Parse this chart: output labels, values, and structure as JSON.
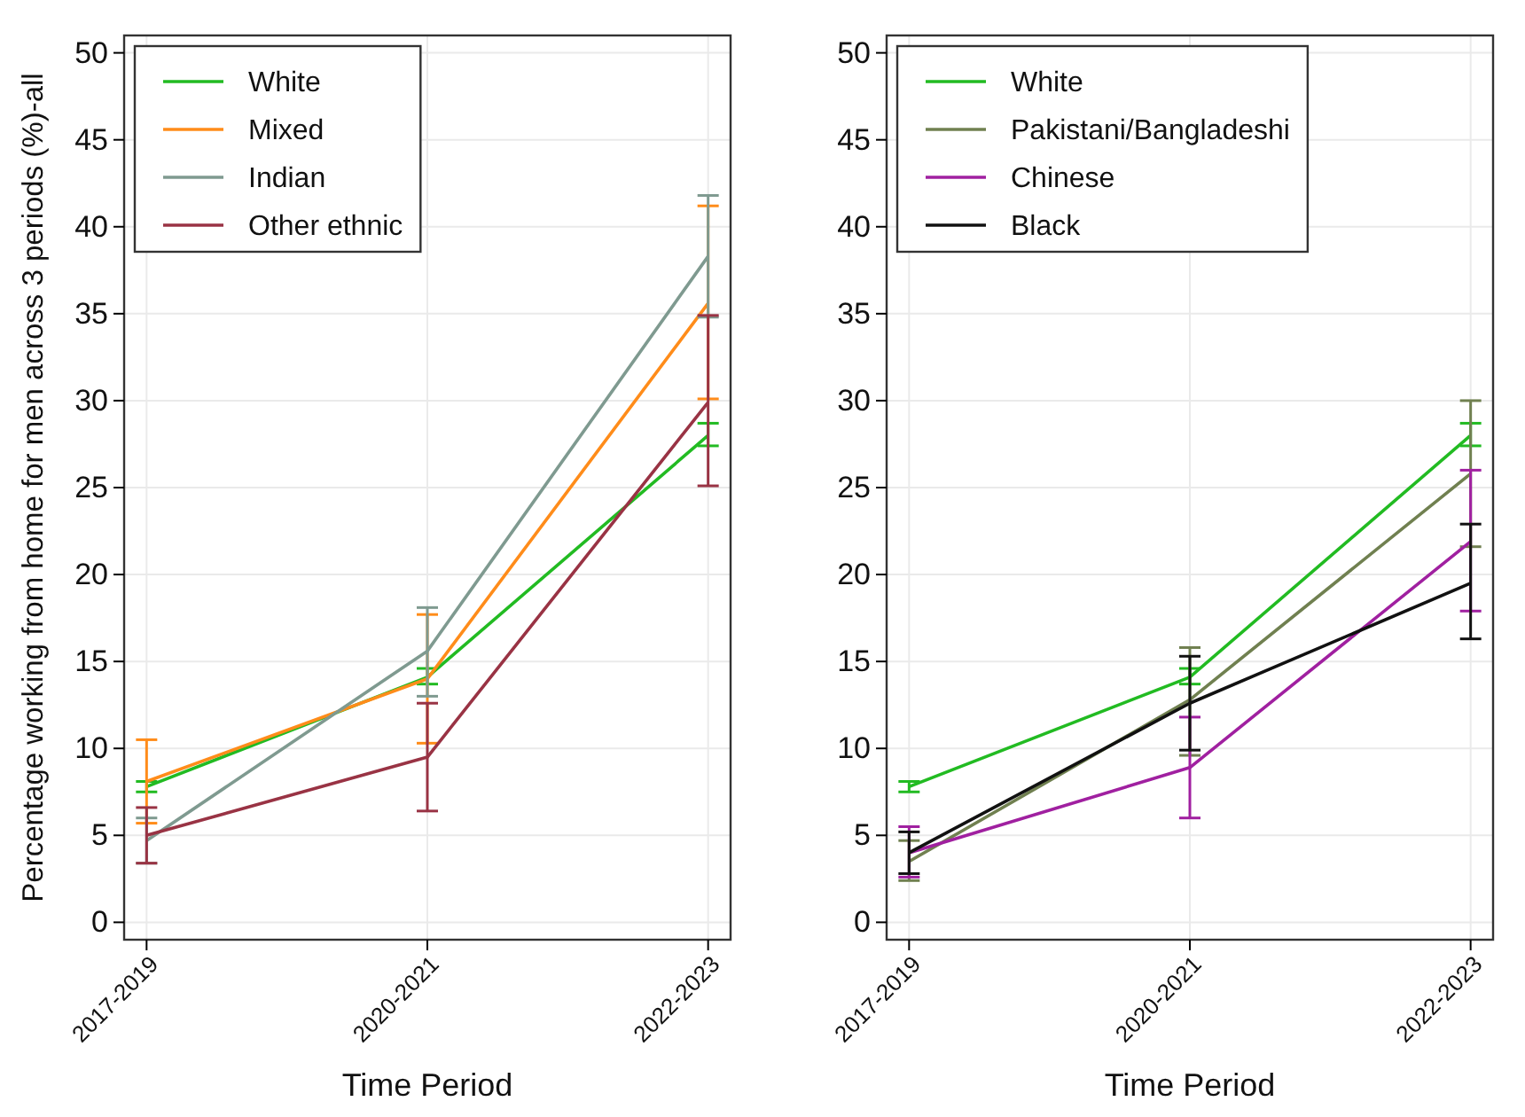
{
  "chart_data": [
    {
      "type": "line",
      "xlabel": "Time Period",
      "ylabel": "Percentage working from home for men across 3 periods (%)-all",
      "categories": [
        "2017-2019",
        "2020-2021",
        "2022-2023"
      ],
      "ylim": [
        -1,
        51
      ],
      "yticks": [
        0,
        5,
        10,
        15,
        20,
        25,
        30,
        35,
        40,
        45,
        50
      ],
      "grid": true,
      "legend": "top left",
      "marker": "none",
      "line_style": "solid",
      "series": [
        {
          "name": "White",
          "color": "#22bb22",
          "values": [
            7.8,
            14.1,
            28.0
          ],
          "errors": [
            [
              7.5,
              8.1
            ],
            [
              13.7,
              14.6
            ],
            [
              27.4,
              28.7
            ]
          ]
        },
        {
          "name": "Mixed",
          "color": "#ff8c1a",
          "values": [
            8.1,
            14.0,
            35.6
          ],
          "errors": [
            [
              5.7,
              10.5
            ],
            [
              10.3,
              17.7
            ],
            [
              30.1,
              41.2
            ]
          ]
        },
        {
          "name": "Indian",
          "color": "#7f9a90",
          "values": [
            4.7,
            15.6,
            38.3
          ],
          "errors": [
            [
              3.4,
              6.0
            ],
            [
              13.0,
              18.1
            ],
            [
              34.8,
              41.8
            ]
          ]
        },
        {
          "name": "Other ethnic",
          "color": "#993344",
          "values": [
            5.0,
            9.5,
            29.9
          ],
          "errors": [
            [
              3.4,
              6.6
            ],
            [
              6.4,
              12.6
            ],
            [
              25.1,
              34.9
            ]
          ]
        }
      ]
    },
    {
      "type": "line",
      "xlabel": "Time Period",
      "categories": [
        "2017-2019",
        "2020-2021",
        "2022-2023"
      ],
      "ylim": [
        -1,
        51
      ],
      "yticks": [
        0,
        5,
        10,
        15,
        20,
        25,
        30,
        35,
        40,
        45,
        50
      ],
      "grid": true,
      "legend": "top left",
      "marker": "none",
      "line_style": "solid",
      "series": [
        {
          "name": "White",
          "color": "#22bb22",
          "values": [
            7.8,
            14.1,
            28.0
          ],
          "errors": [
            [
              7.5,
              8.1
            ],
            [
              13.7,
              14.6
            ],
            [
              27.4,
              28.7
            ]
          ]
        },
        {
          "name": "Pakistani/Bangladeshi",
          "color": "#708050",
          "values": [
            3.5,
            12.8,
            25.8
          ],
          "errors": [
            [
              2.4,
              4.7
            ],
            [
              9.6,
              15.8
            ],
            [
              21.6,
              30.0
            ]
          ]
        },
        {
          "name": "Chinese",
          "color": "#a020a0",
          "values": [
            4.0,
            8.9,
            21.9
          ],
          "errors": [
            [
              2.6,
              5.5
            ],
            [
              6.0,
              11.8
            ],
            [
              17.9,
              26.0
            ]
          ]
        },
        {
          "name": "Black",
          "color": "#111111",
          "values": [
            4.0,
            12.6,
            19.5
          ],
          "errors": [
            [
              2.8,
              5.2
            ],
            [
              9.9,
              15.3
            ],
            [
              16.3,
              22.9
            ]
          ]
        }
      ]
    }
  ]
}
